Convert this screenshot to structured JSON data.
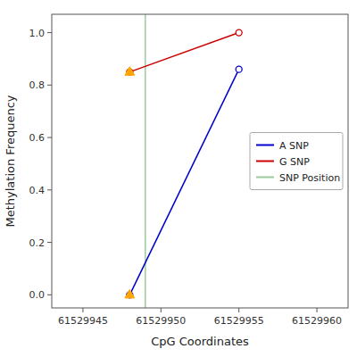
{
  "chart_data": {
    "type": "line",
    "xlabel": "CpG Coordinates",
    "ylabel": "Methylation Frequency",
    "series": [
      {
        "name": "A SNP",
        "color": "#0000CC",
        "marker": "circle",
        "line_style": "solid",
        "x": [
          61529948,
          61529955
        ],
        "values": [
          0.0,
          0.86
        ]
      },
      {
        "name": "G SNP",
        "color": "#CC0000",
        "marker": "circle",
        "line_style": "solid",
        "x": [
          61529948,
          61529955
        ],
        "values": [
          0.85,
          1.0
        ]
      },
      {
        "type": "scatter",
        "color": "#FFA500",
        "marker": "triangle",
        "x": [
          61529948
        ],
        "values": [
          0.85
        ]
      },
      {
        "type": "scatter",
        "color": "#FFA500",
        "marker": "triangle",
        "x": [
          61529948
        ],
        "values": [
          0.0
        ]
      },
      {
        "name": "SNP Position",
        "type": "vline",
        "color": "#99CC99",
        "line_style": "solid",
        "x": [
          61529949
        ]
      }
    ],
    "xlim": [
      61529943,
      61529962
    ],
    "ylim": [
      -0.05,
      1.07
    ],
    "xticks": [
      61529945,
      61529950,
      61529955,
      61529960
    ],
    "yticks": [
      {
        "value": 0.0,
        "label": "0.0"
      },
      0.2,
      0.4,
      0.6,
      0.8,
      {
        "value": 1.0,
        "label": "1.0"
      }
    ],
    "grid": false,
    "legend": "right"
  }
}
